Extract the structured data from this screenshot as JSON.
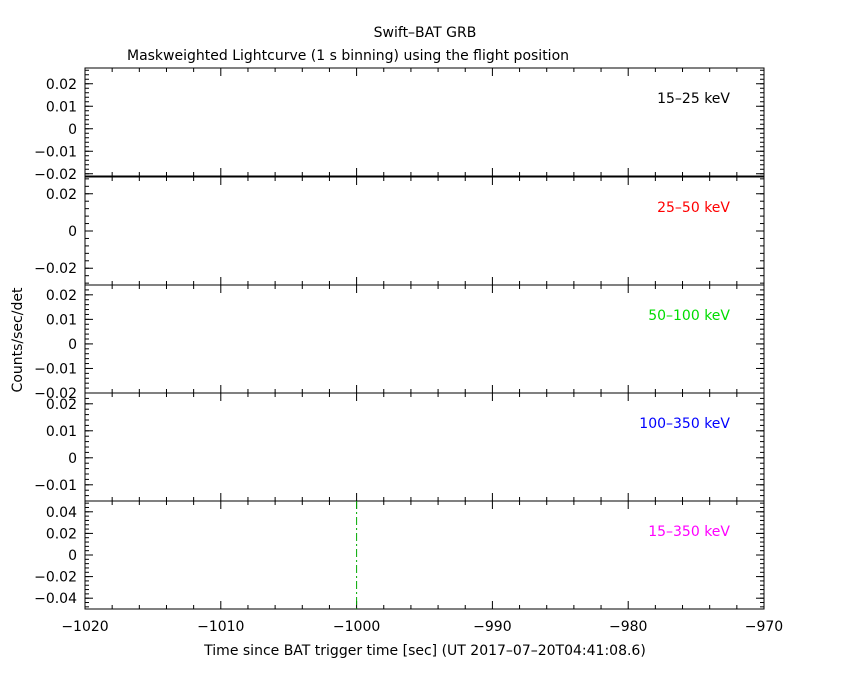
{
  "figure": {
    "title": "Swift–BAT GRB",
    "subtitle": "Maskweighted Lightcurve (1 s binning) using the flight position",
    "xlabel": "Time since BAT trigger time [sec] (UT 2017–07–20T04:41:08.6)",
    "ylabel": "Counts/sec/det"
  },
  "chart_data": [
    {
      "type": "line",
      "band": "15–25 keV",
      "band_color": "#000000",
      "xlim": [
        -1020,
        -970
      ],
      "ylim": [
        -0.021,
        0.027
      ],
      "yticks": [
        -0.02,
        -0.01,
        0,
        0.01,
        0.02
      ],
      "ytick_labels": [
        "−0.02",
        "−0.01",
        "0",
        "0.01",
        "0.02"
      ],
      "series": []
    },
    {
      "type": "line",
      "band": "25–50 keV",
      "band_color": "#ff0000",
      "xlim": [
        -1020,
        -970
      ],
      "ylim": [
        -0.029,
        0.029
      ],
      "yticks": [
        -0.02,
        0,
        0.02
      ],
      "ytick_labels": [
        "−0.02",
        "0",
        "0.02"
      ],
      "series": []
    },
    {
      "type": "line",
      "band": "50–100 keV",
      "band_color": "#00dd00",
      "xlim": [
        -1020,
        -970
      ],
      "ylim": [
        -0.02,
        0.024
      ],
      "yticks": [
        -0.02,
        -0.01,
        0,
        0.01,
        0.02
      ],
      "ytick_labels": [
        "−0.02",
        "−0.01",
        "0",
        "0.01",
        "0.02"
      ],
      "series": []
    },
    {
      "type": "line",
      "band": "100–350 keV",
      "band_color": "#0000ff",
      "xlim": [
        -1020,
        -970
      ],
      "ylim": [
        -0.016,
        0.024
      ],
      "yticks": [
        -0.01,
        0,
        0.01,
        0.02
      ],
      "ytick_labels": [
        "−0.01",
        "0",
        "0.01",
        "0.02"
      ],
      "series": []
    },
    {
      "type": "line",
      "band": "15–350 keV",
      "band_color": "#ff00ff",
      "xlim": [
        -1020,
        -970
      ],
      "ylim": [
        -0.05,
        0.05
      ],
      "yticks": [
        -0.04,
        -0.02,
        0,
        0.02,
        0.04
      ],
      "ytick_labels": [
        "−0.04",
        "−0.02",
        "0",
        "0.02",
        "0.04"
      ],
      "series": [],
      "marker": {
        "x": -1000,
        "style": "dash-dot",
        "color": "#00aa00"
      },
      "xticks": [
        -1020,
        -1010,
        -1000,
        -990,
        -980,
        -970
      ],
      "xtick_labels": [
        "−1020",
        "−1010",
        "−1000",
        "−990",
        "−980",
        "−970"
      ]
    }
  ]
}
